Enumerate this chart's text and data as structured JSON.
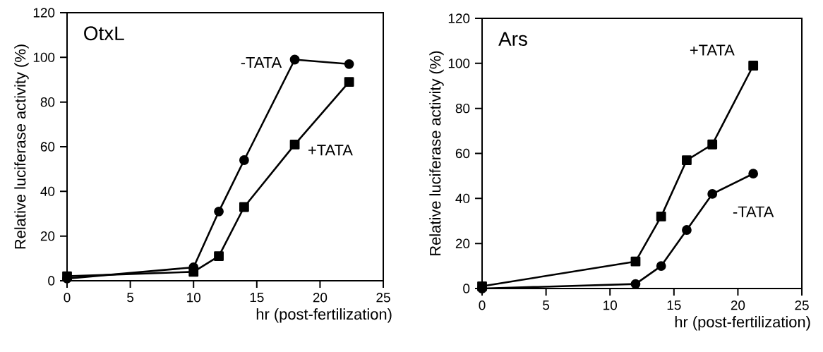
{
  "chart_data": [
    {
      "type": "line",
      "title": "OtxL",
      "xlabel": "hr (post-fertilization)",
      "ylabel": "Relative luciferase activity (%)",
      "xlim": [
        0,
        25
      ],
      "ylim": [
        0,
        120
      ],
      "xticks": [
        0,
        5,
        10,
        15,
        20,
        25
      ],
      "yticks": [
        0,
        20,
        40,
        60,
        80,
        100,
        120
      ],
      "line_style": "solid",
      "series": [
        {
          "name": "-TATA",
          "color": "#000000",
          "marker": "circle",
          "x": [
            0,
            10,
            12,
            14,
            18,
            22.3
          ],
          "values": [
            1,
            6,
            31,
            54,
            99,
            97
          ]
        },
        {
          "name": "+TATA",
          "color": "#000000",
          "marker": "square",
          "x": [
            0,
            10,
            12,
            14,
            18,
            22.3
          ],
          "values": [
            2,
            4,
            11,
            33,
            61,
            89
          ]
        }
      ]
    },
    {
      "type": "line",
      "title": "Ars",
      "xlabel": "hr (post-fertilization)",
      "ylabel": "Relative luciferase activity (%)",
      "xlim": [
        0,
        25
      ],
      "ylim": [
        0,
        120
      ],
      "xticks": [
        0,
        5,
        10,
        15,
        20,
        25
      ],
      "yticks": [
        0,
        20,
        40,
        60,
        80,
        100,
        120
      ],
      "line_style": "solid",
      "series": [
        {
          "name": "+TATA",
          "color": "#000000",
          "marker": "square",
          "x": [
            0,
            12,
            14,
            16,
            18,
            21.2
          ],
          "values": [
            1,
            12,
            32,
            57,
            64,
            99
          ]
        },
        {
          "name": "-TATA",
          "color": "#000000",
          "marker": "circle",
          "x": [
            0,
            12,
            14,
            16,
            18,
            21.2
          ],
          "values": [
            0,
            2,
            10,
            26,
            42,
            51
          ]
        }
      ]
    }
  ]
}
